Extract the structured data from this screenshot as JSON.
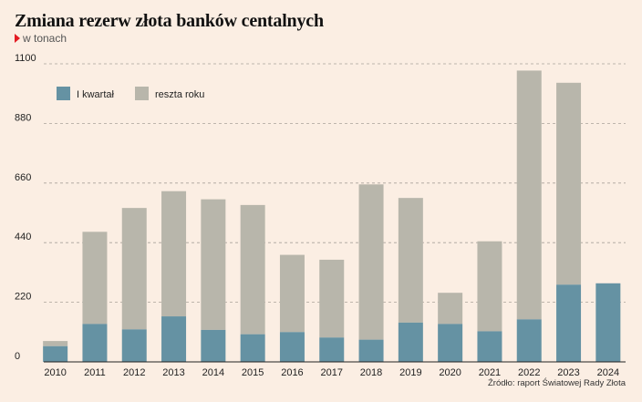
{
  "header": {
    "title": "Zmiana rezerw złota banków centalnych",
    "subtitle": "w tonach"
  },
  "footer": {
    "source": "Źródło: raport Światowej Rady Złota"
  },
  "colors": {
    "q1": "#6592a3",
    "rest": "#b8b6ab",
    "accent": "#e31b23",
    "background": "#fbeee3"
  },
  "chart_data": {
    "type": "bar",
    "stacked": true,
    "title": "Zmiana rezerw złota banków centalnych",
    "subtitle": "w tonach",
    "categories": [
      "2010",
      "2011",
      "2012",
      "2013",
      "2014",
      "2015",
      "2016",
      "2017",
      "2018",
      "2019",
      "2020",
      "2021",
      "2022",
      "2023",
      "2024"
    ],
    "series": [
      {
        "name": "I kwartał",
        "values": [
          58,
          140,
          120,
          168,
          118,
          102,
          110,
          90,
          82,
          145,
          140,
          113,
          157,
          285,
          290
        ]
      },
      {
        "name": "reszta roku",
        "values": [
          19,
          340,
          448,
          462,
          482,
          477,
          285,
          287,
          573,
          460,
          115,
          332,
          918,
          745,
          0
        ]
      }
    ],
    "yticks": [
      0,
      220,
      440,
      660,
      880,
      1100
    ],
    "ylim": [
      0,
      1100
    ],
    "grid": true,
    "legend_position": "top-left",
    "source": "Źródło: raport Światowej Rady Złota"
  }
}
